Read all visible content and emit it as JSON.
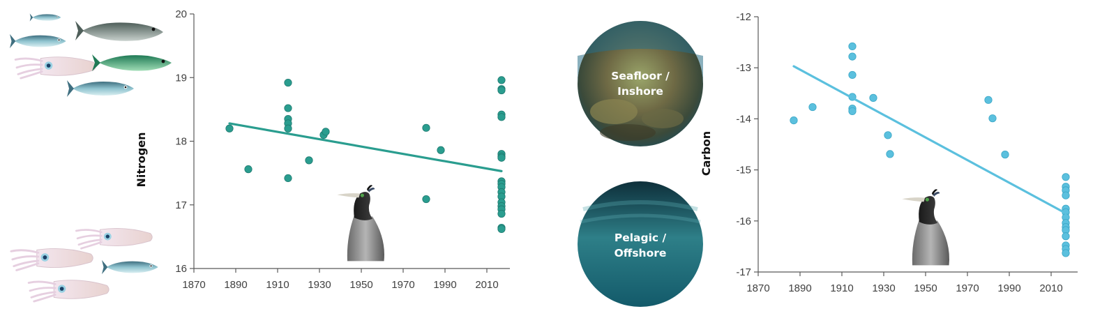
{
  "chart_data": [
    {
      "type": "scatter",
      "ylabel": "Nitrogen",
      "xlabel": "",
      "xlim": [
        1870,
        2020
      ],
      "ylim": [
        16,
        20
      ],
      "x_ticks": [
        1870,
        1890,
        1910,
        1930,
        1950,
        1970,
        1990,
        2010
      ],
      "y_ticks": [
        16,
        17,
        18,
        19,
        20
      ],
      "color": "#2a9d8f",
      "points": [
        [
          1887,
          18.2
        ],
        [
          1896,
          17.56
        ],
        [
          1915,
          18.92
        ],
        [
          1915,
          18.52
        ],
        [
          1915,
          18.35
        ],
        [
          1915,
          18.28
        ],
        [
          1915,
          18.2
        ],
        [
          1915,
          17.42
        ],
        [
          1925,
          17.7
        ],
        [
          1932,
          18.1
        ],
        [
          1933,
          18.15
        ],
        [
          1981,
          18.21
        ],
        [
          1981,
          17.09
        ],
        [
          1988,
          17.86
        ],
        [
          2017,
          18.96
        ],
        [
          2017,
          18.82
        ],
        [
          2017,
          18.8
        ],
        [
          2017,
          18.42
        ],
        [
          2017,
          18.38
        ],
        [
          2017,
          17.8
        ],
        [
          2017,
          17.76
        ],
        [
          2017,
          17.74
        ],
        [
          2017,
          17.37
        ],
        [
          2017,
          17.33
        ],
        [
          2017,
          17.28
        ],
        [
          2017,
          17.2
        ],
        [
          2017,
          17.13
        ],
        [
          2017,
          17.04
        ],
        [
          2017,
          16.98
        ],
        [
          2017,
          16.93
        ],
        [
          2017,
          16.86
        ],
        [
          2017,
          16.64
        ],
        [
          2017,
          16.62
        ]
      ],
      "trend": [
        [
          1887,
          18.28
        ],
        [
          2017,
          17.53
        ]
      ]
    },
    {
      "type": "scatter",
      "ylabel": "Carbon",
      "xlabel": "",
      "xlim": [
        1870,
        2020
      ],
      "ylim": [
        -17,
        -12
      ],
      "x_ticks": [
        1870,
        1890,
        1910,
        1930,
        1950,
        1970,
        1990,
        2010
      ],
      "y_ticks": [
        -12,
        -13,
        -14,
        -15,
        -16,
        -17
      ],
      "color": "#5bc0de",
      "points": [
        [
          1887,
          -14.03
        ],
        [
          1896,
          -13.77
        ],
        [
          1915,
          -12.58
        ],
        [
          1915,
          -12.78
        ],
        [
          1915,
          -13.14
        ],
        [
          1915,
          -13.57
        ],
        [
          1915,
          -13.8
        ],
        [
          1915,
          -13.85
        ],
        [
          1925,
          -13.59
        ],
        [
          1932,
          -14.32
        ],
        [
          1933,
          -14.69
        ],
        [
          1980,
          -13.63
        ],
        [
          1982,
          -13.99
        ],
        [
          1988,
          -14.7
        ],
        [
          2017,
          -15.14
        ],
        [
          2017,
          -15.33
        ],
        [
          2017,
          -15.4
        ],
        [
          2017,
          -15.5
        ],
        [
          2017,
          -15.76
        ],
        [
          2017,
          -15.83
        ],
        [
          2017,
          -15.93
        ],
        [
          2017,
          -16.04
        ],
        [
          2017,
          -16.12
        ],
        [
          2017,
          -16.18
        ],
        [
          2017,
          -16.3
        ],
        [
          2017,
          -16.48
        ],
        [
          2017,
          -16.55
        ],
        [
          2017,
          -16.63
        ]
      ],
      "trend": [
        [
          1887,
          -12.97
        ],
        [
          2017,
          -15.85
        ]
      ]
    }
  ],
  "badges": {
    "seafloor": {
      "line1": "Seafloor /",
      "line2": "Inshore"
    },
    "pelagic": {
      "line1": "Pelagic /",
      "line2": "Offshore"
    }
  },
  "illustrations": {
    "fish_group": "fish-and-squid-icon",
    "squid_group": "squid-and-fish-icon",
    "bird": "cormorant-icon"
  }
}
